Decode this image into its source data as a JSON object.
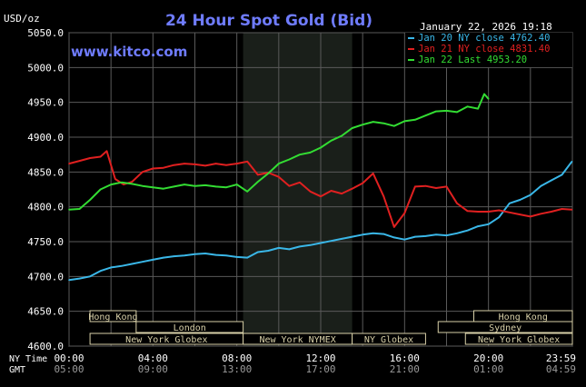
{
  "header": {
    "unit": "USD/oz",
    "title": "24 Hour Spot Gold (Bid)",
    "timestamp": "January 22, 2026 19:18",
    "brand": "www.kitco.com"
  },
  "colors": {
    "background": "#000000",
    "plot": "#000000",
    "overnight": "#1a1f1a",
    "grid": "#5a5a5a",
    "title": "#6f7cff",
    "series_jan20": "#3ab7e8",
    "series_jan21": "#e02020",
    "series_jan22": "#33dd33",
    "session_box": "#d8d0a8"
  },
  "chart_data": {
    "type": "line",
    "title": "24 Hour Spot Gold (Bid)",
    "ylabel": "USD/oz",
    "xlabel": "",
    "ylim": [
      4600,
      5050
    ],
    "xlim": [
      0,
      24
    ],
    "grid": true,
    "legend_position": "top-right",
    "y_ticks": [
      "5050.0",
      "5000.0",
      "4950.0",
      "4900.0",
      "4850.0",
      "4800.0",
      "4750.0",
      "4700.0",
      "4650.0",
      "4600.0"
    ],
    "x_ticks": [
      {
        "x": 0,
        "ny": "00:00",
        "gmt": "05:00"
      },
      {
        "x": 4,
        "ny": "04:00",
        "gmt": "09:00"
      },
      {
        "x": 8,
        "ny": "08:00",
        "gmt": "13:00"
      },
      {
        "x": 12,
        "ny": "12:00",
        "gmt": "17:00"
      },
      {
        "x": 16,
        "ny": "16:00",
        "gmt": "21:00"
      },
      {
        "x": 20,
        "ny": "20:00",
        "gmt": "01:00"
      },
      {
        "x": 23.98,
        "ny": "23:59",
        "gmt": "04:59"
      }
    ],
    "axis_row_labels": {
      "ny": "NY Time",
      "gmt": "GMT"
    },
    "shaded_region": [
      8.3,
      13.5
    ],
    "series": [
      {
        "name": "Jan 20 NY close 4762.40",
        "color": "#3ab7e8",
        "x": [
          0,
          0.5,
          1,
          1.5,
          2,
          2.5,
          3,
          3.5,
          4,
          4.5,
          5,
          5.5,
          6,
          6.5,
          7,
          7.5,
          8,
          8.5,
          9,
          9.5,
          10,
          10.5,
          11,
          11.5,
          12,
          12.5,
          13,
          13.5,
          14,
          14.5,
          15,
          15.5,
          16,
          16.5,
          17,
          17.5,
          18,
          18.5,
          19,
          19.5,
          20,
          20.5,
          21,
          21.5,
          22,
          22.5,
          23,
          23.5,
          23.98
        ],
        "values": [
          4695,
          4697,
          4700,
          4708,
          4713,
          4715,
          4718,
          4721,
          4724,
          4727,
          4729,
          4730,
          4732,
          4733,
          4731,
          4730,
          4728,
          4727,
          4735,
          4737,
          4741,
          4739,
          4743,
          4745,
          4748,
          4751,
          4754,
          4757,
          4760,
          4762,
          4761,
          4756,
          4753,
          4757,
          4758,
          4760,
          4759,
          4762,
          4766,
          4772,
          4775,
          4785,
          4805,
          4810,
          4817,
          4830,
          4838,
          4846,
          4865
        ]
      },
      {
        "name": "Jan 21 NY close 4831.40",
        "color": "#e02020",
        "x": [
          0,
          0.5,
          1,
          1.5,
          1.8,
          2.2,
          2.6,
          3,
          3.5,
          4,
          4.5,
          5,
          5.5,
          6,
          6.5,
          7,
          7.5,
          8,
          8.5,
          9,
          9.5,
          10,
          10.5,
          11,
          11.5,
          12,
          12.5,
          13,
          13.5,
          14,
          14.5,
          15,
          15.5,
          16,
          16.5,
          17,
          17.5,
          18,
          18.5,
          19,
          19.5,
          20,
          20.5,
          21,
          21.5,
          22,
          22.5,
          23,
          23.5,
          23.98
        ],
        "values": [
          4862,
          4866,
          4870,
          4872,
          4880,
          4840,
          4832,
          4836,
          4850,
          4855,
          4856,
          4860,
          4862,
          4861,
          4859,
          4862,
          4860,
          4862,
          4865,
          4846,
          4849,
          4843,
          4830,
          4835,
          4822,
          4815,
          4823,
          4819,
          4826,
          4834,
          4848,
          4815,
          4771,
          4791,
          4829,
          4830,
          4827,
          4829,
          4805,
          4794,
          4793,
          4793,
          4795,
          4792,
          4789,
          4786,
          4790,
          4793,
          4797,
          4796
        ]
      },
      {
        "name": "Jan 22 Last 4953.20",
        "color": "#33dd33",
        "x": [
          0,
          0.5,
          1,
          1.5,
          2,
          2.5,
          3,
          3.5,
          4,
          4.5,
          5,
          5.5,
          6,
          6.5,
          7,
          7.5,
          8,
          8.5,
          9,
          9.5,
          10,
          10.5,
          11,
          11.5,
          12,
          12.5,
          13,
          13.5,
          14,
          14.5,
          15,
          15.5,
          16,
          16.5,
          17,
          17.5,
          18,
          18.5,
          19,
          19.5,
          19.8,
          20
        ],
        "values": [
          4796,
          4797,
          4810,
          4825,
          4832,
          4835,
          4833,
          4830,
          4828,
          4826,
          4829,
          4832,
          4830,
          4831,
          4829,
          4828,
          4832,
          4822,
          4836,
          4848,
          4862,
          4868,
          4875,
          4878,
          4885,
          4895,
          4902,
          4913,
          4918,
          4922,
          4920,
          4916,
          4923,
          4925,
          4931,
          4937,
          4938,
          4936,
          4944,
          4941,
          4962,
          4955
        ]
      }
    ],
    "sessions": [
      {
        "label": "Hong Kong",
        "start": 1.0,
        "end": 3.2,
        "row": 0
      },
      {
        "label": "London",
        "start": 3.2,
        "end": 8.3,
        "row": 1
      },
      {
        "label": "New York Globex",
        "start": 1.0,
        "end": 8.3,
        "row": 2
      },
      {
        "label": "New York NYMEX",
        "start": 8.3,
        "end": 13.5,
        "row": 2
      },
      {
        "label": "NY Globex",
        "start": 13.5,
        "end": 17.0,
        "row": 2
      },
      {
        "label": "Hong Kong",
        "start": 19.3,
        "end": 24.0,
        "row": 0
      },
      {
        "label": "Sydney",
        "start": 17.6,
        "end": 24.0,
        "row": 1
      },
      {
        "label": "New York Globex",
        "start": 18.9,
        "end": 24.0,
        "row": 2
      }
    ]
  }
}
